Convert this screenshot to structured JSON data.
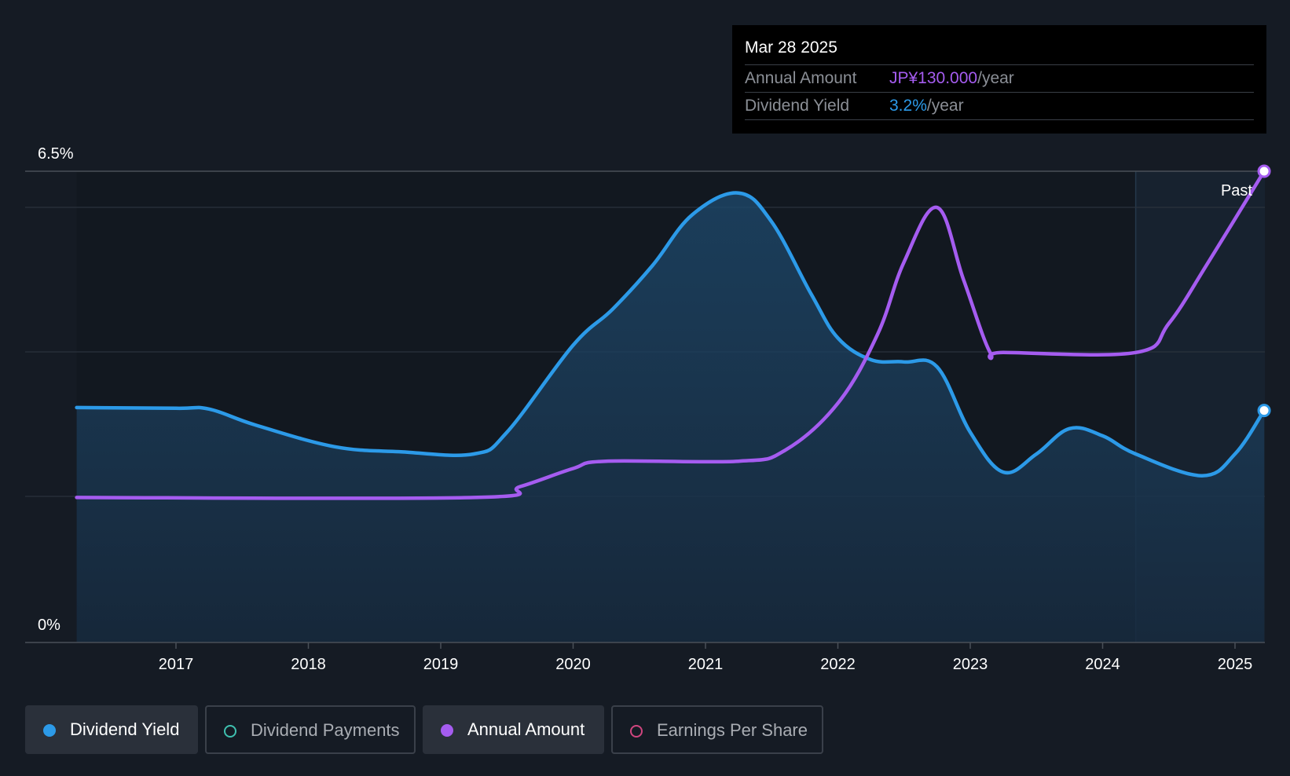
{
  "tooltip": {
    "date": "Mar 28 2025",
    "annual_amount_label": "Annual Amount",
    "annual_amount_value": "JP¥130.000",
    "annual_amount_unit": "/year",
    "dividend_yield_label": "Dividend Yield",
    "dividend_yield_value": "3.2%",
    "dividend_yield_unit": "/year"
  },
  "legend": [
    {
      "label": "Dividend Yield",
      "color": "#2c9ae8",
      "active": true
    },
    {
      "label": "Dividend Payments",
      "color": "#3fc1b0",
      "active": false
    },
    {
      "label": "Annual Amount",
      "color": "#a55cf0",
      "active": true
    },
    {
      "label": "Earnings Per Share",
      "color": "#d0467f",
      "active": false
    }
  ],
  "chart_data": {
    "type": "line",
    "y_top_label": "6.5%",
    "y_bottom_label": "0%",
    "past_label": "Past",
    "ylim": [
      0,
      6.5
    ],
    "xlim": [
      2016.0,
      2025.3
    ],
    "past_start": 2024.25,
    "x_ticks": [
      "2017",
      "2018",
      "2019",
      "2020",
      "2021",
      "2022",
      "2023",
      "2024",
      "2025"
    ],
    "colors": {
      "dividend_yield": "#2c9ae8",
      "annual_amount": "#a55cf0"
    },
    "series": [
      {
        "key": "dividend_yield",
        "unit": "%",
        "points": [
          [
            2016.25,
            3.24
          ],
          [
            2017.0,
            3.23
          ],
          [
            2017.25,
            3.22
          ],
          [
            2017.6,
            3.0
          ],
          [
            2018.2,
            2.7
          ],
          [
            2018.7,
            2.63
          ],
          [
            2019.25,
            2.6
          ],
          [
            2019.5,
            2.9
          ],
          [
            2020.0,
            4.1
          ],
          [
            2020.3,
            4.6
          ],
          [
            2020.6,
            5.2
          ],
          [
            2020.9,
            5.9
          ],
          [
            2021.25,
            6.2
          ],
          [
            2021.5,
            5.8
          ],
          [
            2021.8,
            4.8
          ],
          [
            2022.0,
            4.2
          ],
          [
            2022.25,
            3.9
          ],
          [
            2022.5,
            3.87
          ],
          [
            2022.75,
            3.8
          ],
          [
            2023.0,
            2.9
          ],
          [
            2023.25,
            2.35
          ],
          [
            2023.5,
            2.6
          ],
          [
            2023.75,
            2.95
          ],
          [
            2024.0,
            2.85
          ],
          [
            2024.25,
            2.6
          ],
          [
            2024.75,
            2.3
          ],
          [
            2025.0,
            2.6
          ],
          [
            2025.22,
            3.2
          ]
        ]
      },
      {
        "key": "annual_amount",
        "unit": "JP¥",
        "ylim": [
          0,
          130
        ],
        "points": [
          [
            2016.25,
            40
          ],
          [
            2019.25,
            40
          ],
          [
            2019.6,
            43
          ],
          [
            2020.0,
            48
          ],
          [
            2020.25,
            50
          ],
          [
            2021.25,
            50
          ],
          [
            2021.6,
            53
          ],
          [
            2022.0,
            66
          ],
          [
            2022.3,
            85
          ],
          [
            2022.5,
            105
          ],
          [
            2022.75,
            120
          ],
          [
            2022.95,
            100
          ],
          [
            2023.15,
            80
          ],
          [
            2023.25,
            80
          ],
          [
            2024.25,
            80
          ],
          [
            2024.5,
            88
          ],
          [
            2024.8,
            105
          ],
          [
            2025.22,
            130
          ]
        ]
      }
    ]
  }
}
